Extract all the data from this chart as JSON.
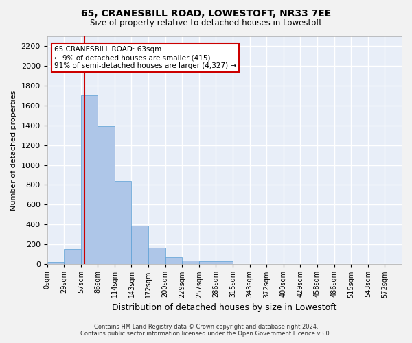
{
  "title": "65, CRANESBILL ROAD, LOWESTOFT, NR33 7EE",
  "subtitle": "Size of property relative to detached houses in Lowestoft",
  "xlabel": "Distribution of detached houses by size in Lowestoft",
  "ylabel": "Number of detached properties",
  "bar_color": "#aec6e8",
  "bar_edge_color": "#5a9fd4",
  "background_color": "#e8eef8",
  "grid_color": "#ffffff",
  "bins": [
    "0sqm",
    "29sqm",
    "57sqm",
    "86sqm",
    "114sqm",
    "143sqm",
    "172sqm",
    "200sqm",
    "229sqm",
    "257sqm",
    "286sqm",
    "315sqm",
    "343sqm",
    "372sqm",
    "400sqm",
    "429sqm",
    "458sqm",
    "486sqm",
    "515sqm",
    "543sqm",
    "572sqm"
  ],
  "bar_heights": [
    20,
    155,
    1700,
    1390,
    835,
    385,
    165,
    68,
    38,
    28,
    28,
    0,
    0,
    0,
    0,
    0,
    0,
    0,
    0,
    0,
    0
  ],
  "ylim": [
    0,
    2300
  ],
  "yticks": [
    0,
    200,
    400,
    600,
    800,
    1000,
    1200,
    1400,
    1600,
    1800,
    2000,
    2200
  ],
  "property_line_x": 63,
  "annotation_title": "65 CRANESBILL ROAD: 63sqm",
  "annotation_line1": "← 9% of detached houses are smaller (415)",
  "annotation_line2": "91% of semi-detached houses are larger (4,327) →",
  "red_line_color": "#cc0000",
  "annotation_box_color": "#ffffff",
  "annotation_box_edge_color": "#cc0000",
  "footer_line1": "Contains HM Land Registry data © Crown copyright and database right 2024.",
  "footer_line2": "Contains public sector information licensed under the Open Government Licence v3.0."
}
